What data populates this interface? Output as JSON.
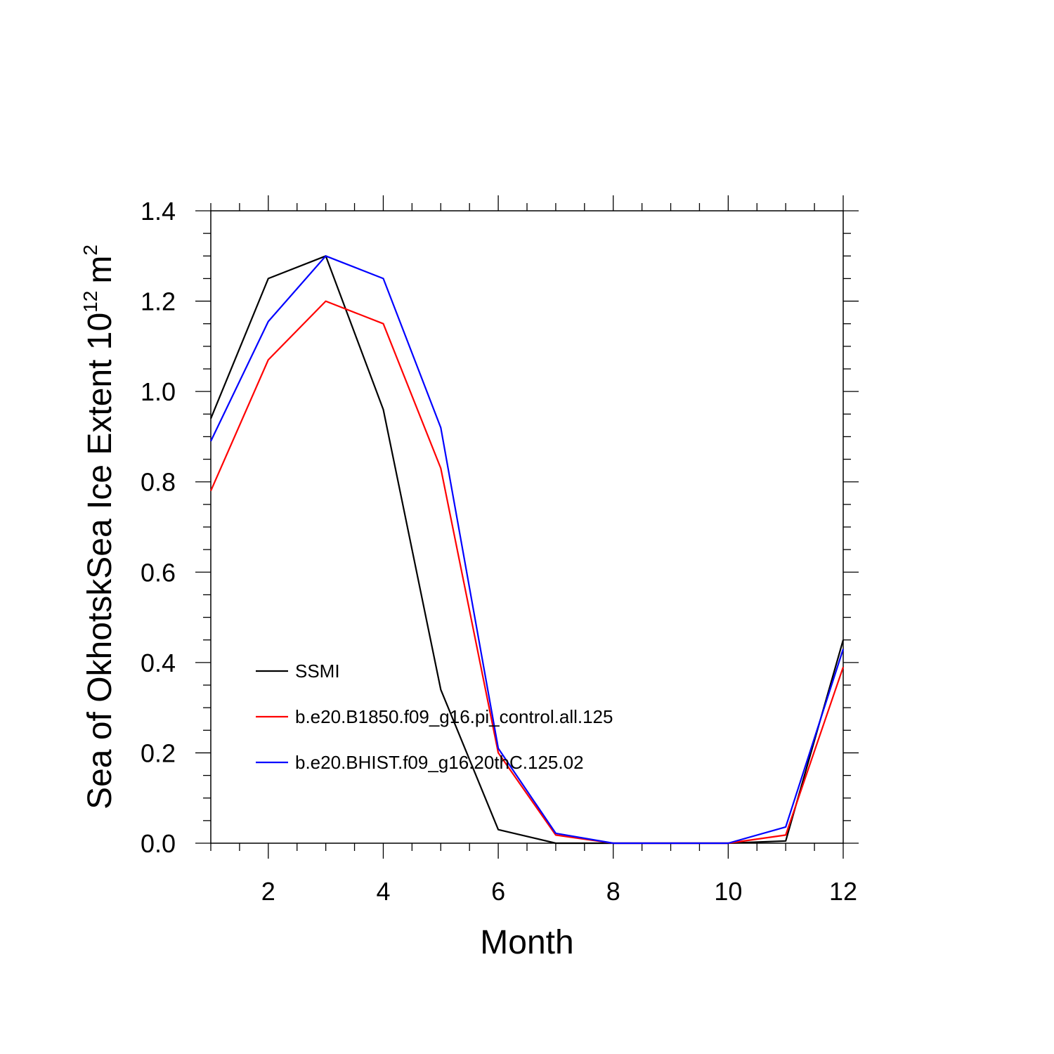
{
  "chart_data": {
    "type": "line",
    "title": "",
    "xlabel": "Month",
    "ylabel_main": "Sea of OkhotskSea Ice Extent 10",
    "ylabel_exp": "12",
    "ylabel_unit": "m",
    "ylabel_unit_exp": "2",
    "xlim": [
      1,
      12
    ],
    "ylim": [
      0.0,
      1.4
    ],
    "x": [
      1,
      2,
      3,
      4,
      5,
      6,
      7,
      8,
      9,
      10,
      11,
      12
    ],
    "xticks": [
      2,
      4,
      6,
      8,
      10,
      12
    ],
    "xtick_labels": [
      "2",
      "4",
      "6",
      "8",
      "10",
      "12"
    ],
    "yticks": [
      0.0,
      0.2,
      0.4,
      0.6,
      0.8,
      1.0,
      1.2,
      1.4
    ],
    "ytick_labels": [
      "0.0",
      "0.2",
      "0.4",
      "0.6",
      "0.8",
      "1.0",
      "1.2",
      "1.4"
    ],
    "grid": false,
    "legend_position": "lower-left",
    "series": [
      {
        "name": "SSMI",
        "color": "#000000",
        "values": [
          0.94,
          1.25,
          1.3,
          0.96,
          0.34,
          0.03,
          0.0,
          0.0,
          0.0,
          0.0,
          0.005,
          0.45
        ]
      },
      {
        "name": "b.e20.B1850.f09_g16.pi_control.all.125",
        "color": "#ff0000",
        "values": [
          0.78,
          1.07,
          1.2,
          1.15,
          0.83,
          0.2,
          0.018,
          0.0,
          0.0,
          0.0,
          0.018,
          0.39
        ]
      },
      {
        "name": "b.e20.BHIST.f09_g16.20thC.125.02",
        "color": "#0000ff",
        "values": [
          0.89,
          1.155,
          1.3,
          1.25,
          0.92,
          0.21,
          0.022,
          0.0,
          0.0,
          0.0,
          0.036,
          0.43
        ]
      }
    ]
  }
}
